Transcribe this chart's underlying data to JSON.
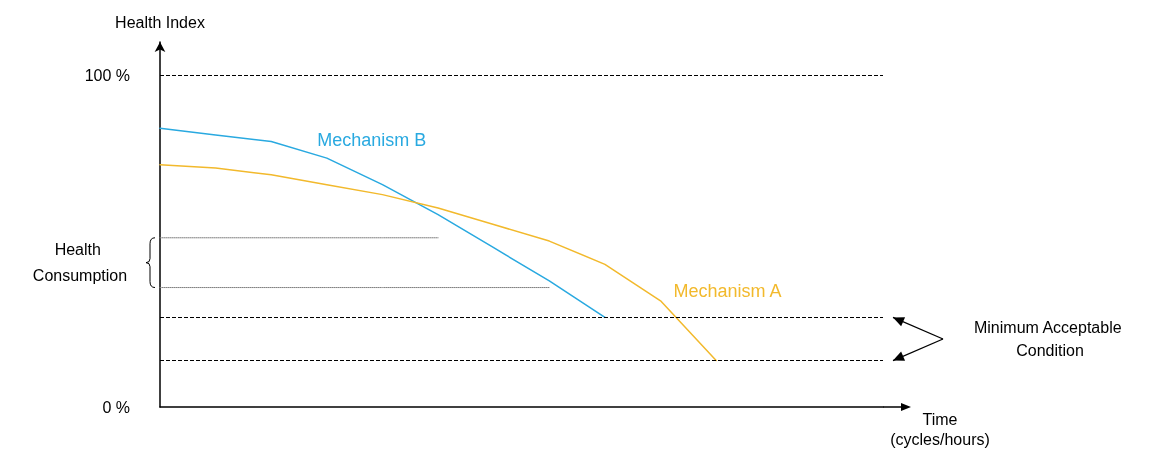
{
  "chart_data": {
    "type": "line",
    "ylabel": "Health Index",
    "xlabel": "Time (cycles/hours)",
    "categories": [
      null,
      null,
      null,
      null,
      null,
      null,
      null,
      null,
      null,
      null,
      null,
      null,
      null,
      null
    ],
    "series": [
      {
        "name": "Mechanism B",
        "color": "#29a9e0",
        "values": [
          84,
          82,
          80,
          75,
          67,
          58,
          48,
          38,
          27,
          null,
          null,
          null,
          null,
          null
        ]
      },
      {
        "name": "Mechanism A",
        "color": "#f2b92c",
        "values": [
          73,
          72,
          70,
          67,
          64,
          60,
          55,
          50,
          43,
          32,
          14,
          null,
          null,
          null
        ]
      },
      {
        "color": "#7f7f7f",
        "line_style": "dotted",
        "values": [
          51,
          51,
          51,
          51,
          51,
          51,
          null,
          null,
          null,
          null,
          null,
          null,
          null,
          null
        ]
      },
      {
        "color": "#7f7f7f",
        "line_style": "dotted",
        "values": [
          36,
          36,
          36,
          36,
          36,
          36,
          36,
          36,
          null,
          null,
          null,
          null,
          null,
          null
        ]
      }
    ],
    "ylim": [
      0,
      110
    ],
    "yticks": [
      {
        "value": 0,
        "label": "0 %"
      },
      {
        "value": 100,
        "label": "100 %"
      }
    ],
    "ref_lines": [
      {
        "axis": "y",
        "value": 100,
        "color": "#000000",
        "line_style": "dashed"
      },
      {
        "axis": "y",
        "value": 27,
        "color": "#000000",
        "line_style": "dashed"
      },
      {
        "axis": "y",
        "value": 14,
        "color": "#000000",
        "line_style": "dashed"
      }
    ],
    "annotations": [
      "Health Consumption",
      "Minimum Acceptable Condition"
    ],
    "tick_labels": "y",
    "grid": false,
    "legend": false,
    "marker": "none",
    "line_style": "solid"
  }
}
